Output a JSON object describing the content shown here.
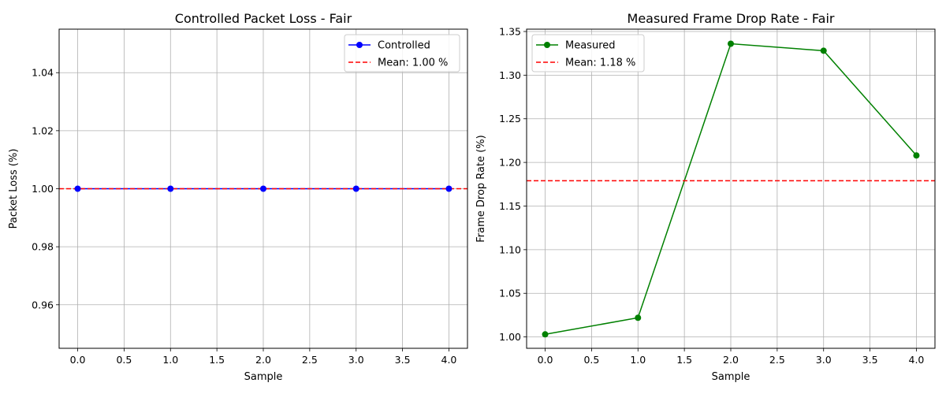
{
  "chart_data": [
    {
      "type": "line",
      "title": "Controlled Packet Loss - Fair",
      "xlabel": "Sample",
      "ylabel": "Packet Loss (%)",
      "x": [
        0,
        1,
        2,
        3,
        4
      ],
      "xlim": [
        -0.2,
        4.2
      ],
      "ylim": [
        0.945,
        1.055
      ],
      "xticks": [
        "0.0",
        "0.5",
        "1.0",
        "1.5",
        "2.0",
        "2.5",
        "3.0",
        "3.5",
        "4.0"
      ],
      "yticks": [
        "0.96",
        "0.98",
        "1.00",
        "1.02",
        "1.04"
      ],
      "grid": true,
      "legend_position": "top-right",
      "series": [
        {
          "name": "Controlled",
          "values": [
            1.0,
            1.0,
            1.0,
            1.0,
            1.0
          ],
          "color": "#0000ff",
          "style": "solid",
          "marker": "circle"
        }
      ],
      "mean_line": {
        "label": "Mean: 1.00 %",
        "value": 1.0,
        "color": "#ff0000",
        "style": "dashed"
      }
    },
    {
      "type": "line",
      "title": "Measured Frame Drop Rate - Fair",
      "xlabel": "Sample",
      "ylabel": "Frame Drop Rate (%)",
      "x": [
        0,
        1,
        2,
        3,
        4
      ],
      "xlim": [
        -0.2,
        4.2
      ],
      "ylim": [
        0.987,
        1.3527
      ],
      "xticks": [
        "0.0",
        "0.5",
        "1.0",
        "1.5",
        "2.0",
        "2.5",
        "3.0",
        "3.5",
        "4.0"
      ],
      "yticks": [
        "1.00",
        "1.05",
        "1.10",
        "1.15",
        "1.20",
        "1.25",
        "1.30",
        "1.35"
      ],
      "grid": true,
      "legend_position": "top-left",
      "series": [
        {
          "name": "Measured",
          "values": [
            1.003,
            1.022,
            1.336,
            1.328,
            1.208
          ],
          "color": "#008000",
          "style": "solid",
          "marker": "circle"
        }
      ],
      "mean_line": {
        "label": "Mean: 1.18 %",
        "value": 1.179,
        "color": "#ff0000",
        "style": "dashed"
      }
    }
  ]
}
